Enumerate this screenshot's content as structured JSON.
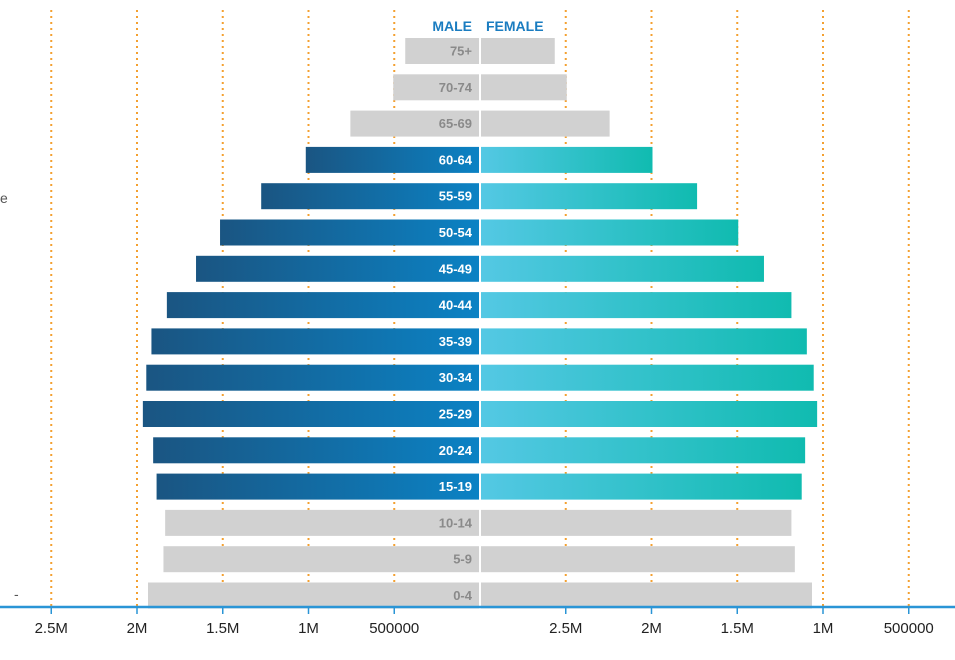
{
  "chart_data": {
    "type": "bar",
    "orientation": "horizontal",
    "layout": "population-pyramid",
    "title": "",
    "xlabel": "",
    "ylabel": "",
    "xlim": [
      0,
      2500000
    ],
    "grid": true,
    "legend": "none",
    "series_headers": {
      "male": "MALE",
      "female": "FEMALE"
    },
    "x_ticks_left": [
      "2.5M",
      "2M",
      "1.5M",
      "1M",
      "500000"
    ],
    "x_ticks_right": [
      "500000",
      "1M",
      "1.5M",
      "2M",
      "2.5M"
    ],
    "x_tick_values": [
      2500000,
      2000000,
      1500000,
      1000000,
      500000
    ],
    "categories": [
      "75+",
      "70-74",
      "65-69",
      "60-64",
      "55-59",
      "50-54",
      "45-49",
      "40-44",
      "35-39",
      "30-34",
      "25-29",
      "20-24",
      "15-19",
      "10-14",
      "5-9",
      "0-4"
    ],
    "highlighted": [
      false,
      false,
      false,
      true,
      true,
      true,
      true,
      true,
      true,
      true,
      true,
      true,
      true,
      false,
      false,
      false
    ],
    "series": [
      {
        "name": "MALE",
        "values": [
          430000,
          500000,
          750000,
          1010000,
          1270000,
          1510000,
          1650000,
          1820000,
          1910000,
          1940000,
          1960000,
          1900000,
          1880000,
          1830000,
          1840000,
          1930000
        ]
      },
      {
        "name": "FEMALE",
        "values": [
          430000,
          500000,
          750000,
          1000000,
          1260000,
          1500000,
          1650000,
          1810000,
          1900000,
          1940000,
          1960000,
          1890000,
          1870000,
          1810000,
          1830000,
          1930000
        ]
      }
    ],
    "colors": {
      "male_dark": "#1a5582",
      "male_light": "#0b82c4",
      "female_light": "#54c8e4",
      "female_dark": "#10bbb0",
      "muted": "#d1d1d1",
      "muted_label": "#8a8a8a",
      "grid": "#f4a030",
      "axis": "#2a95d6",
      "header": "#1a7cc0"
    }
  },
  "side_fragments": {
    "left_edge_top": "e",
    "left_edge_bottom": "-"
  }
}
